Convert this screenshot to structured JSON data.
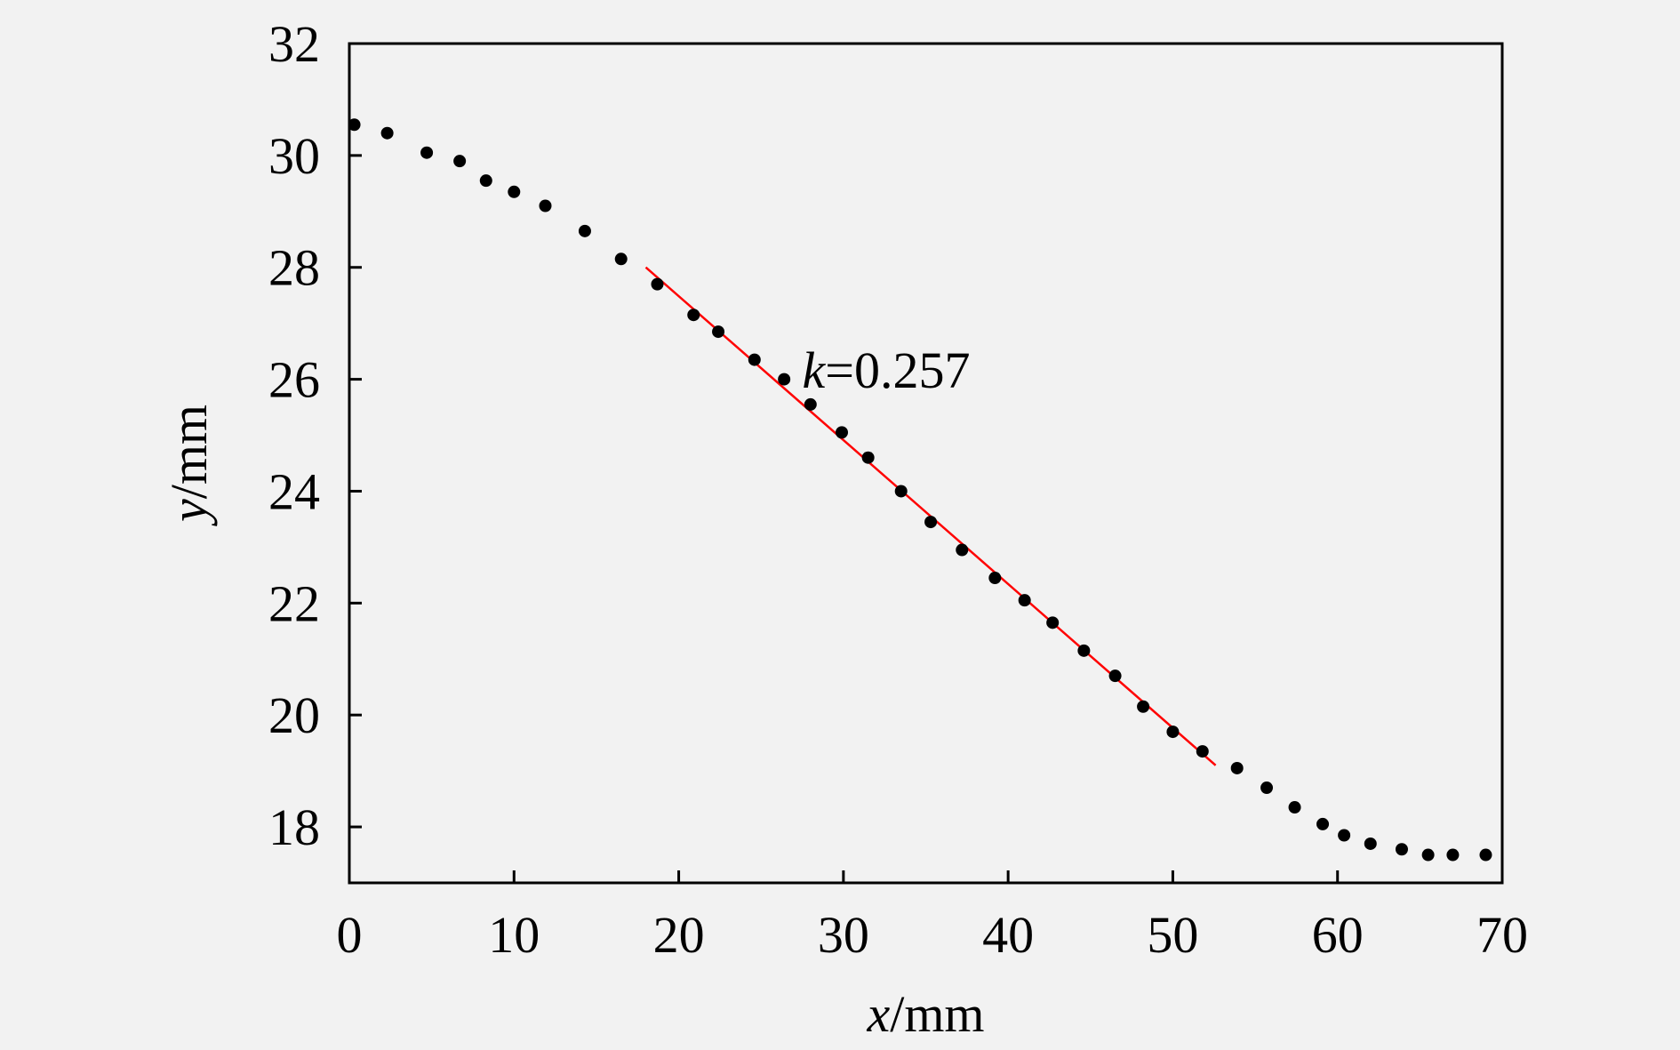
{
  "chart_data": {
    "type": "scatter",
    "xlabel": {
      "var": "x",
      "unit": "/mm"
    },
    "ylabel": {
      "var": "y",
      "unit": "/mm"
    },
    "xlim": [
      0,
      70
    ],
    "ylim": [
      17,
      32
    ],
    "xticks": [
      0,
      10,
      20,
      30,
      40,
      50,
      60,
      70
    ],
    "yticks": [
      18,
      20,
      22,
      24,
      26,
      28,
      30,
      32
    ],
    "grid": false,
    "legend": "none",
    "series": [
      {
        "marker_color": "#000000",
        "points": [
          [
            0.3,
            30.55
          ],
          [
            2.3,
            30.4
          ],
          [
            4.7,
            30.05
          ],
          [
            6.7,
            29.9
          ],
          [
            8.3,
            29.55
          ],
          [
            10.0,
            29.35
          ],
          [
            11.9,
            29.1
          ],
          [
            14.3,
            28.65
          ],
          [
            16.5,
            28.15
          ],
          [
            18.7,
            27.7
          ],
          [
            20.9,
            27.15
          ],
          [
            22.4,
            26.85
          ],
          [
            24.6,
            26.35
          ],
          [
            26.4,
            26.0
          ],
          [
            28.0,
            25.55
          ],
          [
            29.9,
            25.05
          ],
          [
            31.5,
            24.6
          ],
          [
            33.5,
            24.0
          ],
          [
            35.3,
            23.45
          ],
          [
            37.2,
            22.95
          ],
          [
            39.2,
            22.45
          ],
          [
            41.0,
            22.05
          ],
          [
            42.7,
            21.65
          ],
          [
            44.6,
            21.15
          ],
          [
            46.5,
            20.7
          ],
          [
            48.2,
            20.15
          ],
          [
            50.0,
            19.7
          ],
          [
            51.8,
            19.35
          ],
          [
            53.9,
            19.05
          ],
          [
            55.7,
            18.7
          ],
          [
            57.4,
            18.35
          ],
          [
            59.1,
            18.05
          ],
          [
            60.4,
            17.85
          ],
          [
            62.0,
            17.7
          ],
          [
            63.9,
            17.6
          ],
          [
            65.5,
            17.5
          ],
          [
            67.0,
            17.5
          ],
          [
            69.0,
            17.5
          ]
        ]
      }
    ],
    "fit_line": {
      "color": "#ff0000",
      "from": [
        18.0,
        28.0
      ],
      "to": [
        52.6,
        19.1
      ]
    },
    "annotation": {
      "var": "k",
      "value": "=0.257",
      "x": 27.5,
      "y": 25.85
    }
  }
}
